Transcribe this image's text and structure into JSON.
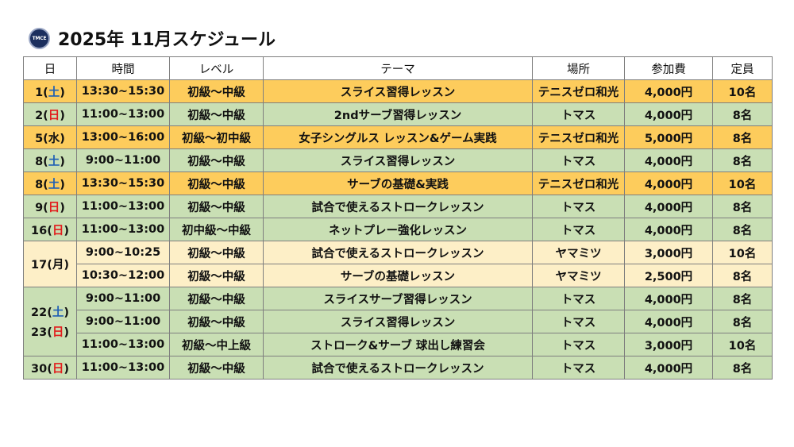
{
  "header": {
    "logo_text": "TMCE",
    "title": "2025年 11月スケジュール"
  },
  "table": {
    "columns": [
      "日",
      "時間",
      "レベル",
      "テーマ",
      "場所",
      "参加費",
      "定員"
    ],
    "rows": [
      {
        "day": "1",
        "dow": "土",
        "time": "13:30~15:30",
        "level": "初級～中級",
        "theme": "スライス習得レッスン",
        "place": "テニスゼロ和光",
        "fee": "4,000円",
        "capacity": "10名",
        "color": "#fdcc5c"
      },
      {
        "day": "2",
        "dow": "日",
        "time": "11:00~13:00",
        "level": "初級～中級",
        "theme": "2ndサーブ習得レッスン",
        "place": "トマス",
        "fee": "4,000円",
        "capacity": "8名",
        "color": "#c9dfb4"
      },
      {
        "day": "5",
        "dow": "水",
        "time": "13:00~16:00",
        "level": "初級～初中級",
        "theme": "女子シングルス レッスン&ゲーム実践",
        "place": "テニスゼロ和光",
        "fee": "5,000円",
        "capacity": "8名",
        "color": "#fdcc5c"
      },
      {
        "day": "8",
        "dow": "土",
        "time": "9:00~11:00",
        "level": "初級～中級",
        "theme": "スライス習得レッスン",
        "place": "トマス",
        "fee": "4,000円",
        "capacity": "8名",
        "color": "#c9dfb4"
      },
      {
        "day": "8",
        "dow": "土",
        "time": "13:30~15:30",
        "level": "初級～中級",
        "theme": "サーブの基礎&実践",
        "place": "テニスゼロ和光",
        "fee": "4,000円",
        "capacity": "10名",
        "color": "#fdcc5c"
      },
      {
        "day": "9",
        "dow": "日",
        "time": "11:00~13:00",
        "level": "初級～中級",
        "theme": "試合で使えるストロークレッスン",
        "place": "トマス",
        "fee": "4,000円",
        "capacity": "8名",
        "color": "#c9dfb4"
      },
      {
        "day": "16",
        "dow": "日",
        "time": "11:00~13:00",
        "level": "初中級～中級",
        "theme": "ネットプレー強化レッスン",
        "place": "トマス",
        "fee": "4,000円",
        "capacity": "8名",
        "color": "#c9dfb4"
      },
      {
        "day": "17",
        "dow": "月",
        "time": "9:00~10:25",
        "level": "初級～中級",
        "theme": "試合で使えるストロークレッスン",
        "place": "ヤマミツ",
        "fee": "3,000円",
        "capacity": "10名",
        "color": "#fdefc7"
      },
      {
        "time": "10:30~12:00",
        "level": "初級～中級",
        "theme": "サーブの基礎レッスン",
        "place": "ヤマミツ",
        "fee": "2,500円",
        "capacity": "8名",
        "color": "#fdefc7"
      },
      {
        "day": "22",
        "dow": "土",
        "time": "9:00~11:00",
        "level": "初級～中級",
        "theme": "スライスサーブ習得レッスン",
        "place": "トマス",
        "fee": "4,000円",
        "capacity": "8名",
        "color": "#c9dfb4"
      },
      {
        "day": "23",
        "dow": "日",
        "time": "9:00~11:00",
        "level": "初級～中級",
        "theme": "スライス習得レッスン",
        "place": "トマス",
        "fee": "4,000円",
        "capacity": "8名",
        "color": "#c9dfb4"
      },
      {
        "time": "11:00~13:00",
        "level": "初級～中上級",
        "theme": "ストローク&サーブ 球出し練習会",
        "place": "トマス",
        "fee": "3,000円",
        "capacity": "10名",
        "color": "#c9dfb4"
      },
      {
        "day": "30",
        "dow": "日",
        "time": "11:00~13:00",
        "level": "初級～中級",
        "theme": "試合で使えるストロークレッスン",
        "place": "トマス",
        "fee": "4,000円",
        "capacity": "8名",
        "color": "#c9dfb4"
      }
    ]
  }
}
